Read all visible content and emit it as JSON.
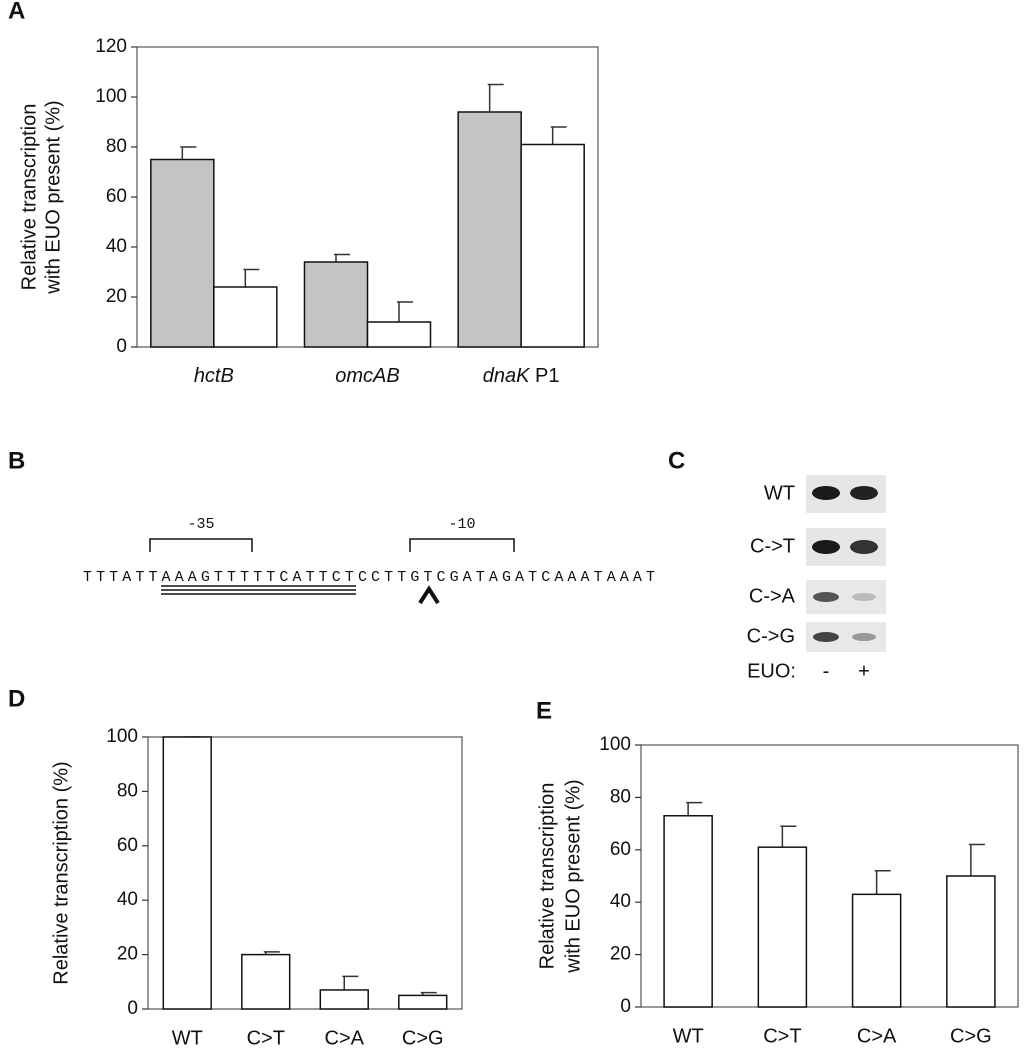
{
  "chart_data": [
    {
      "type": "bar",
      "label": "A",
      "ylabel": [
        "Relative transcription",
        "with EUO present (%)"
      ],
      "categories": [
        "hctB",
        "omcAB",
        "dnaK P1"
      ],
      "series": [
        {
          "color": "#c4c4c4",
          "values": [
            75,
            34,
            94
          ],
          "errors": [
            5,
            3,
            11
          ]
        },
        {
          "color": "#ffffff",
          "values": [
            24,
            10,
            81
          ],
          "errors": [
            7,
            8,
            7
          ]
        }
      ],
      "ylim": [
        0,
        120
      ],
      "yticks": [
        0,
        20,
        40,
        60,
        80,
        100,
        120
      ]
    },
    {
      "type": "bar",
      "label": "D",
      "ylabel": [
        "Relative transcription (%)"
      ],
      "categories": [
        "WT",
        "C>T",
        "C>A",
        "C>G"
      ],
      "series": [
        {
          "color": "#ffffff",
          "values": [
            100,
            20,
            7,
            5
          ],
          "errors": [
            0,
            1,
            5,
            1
          ]
        }
      ],
      "ylim": [
        0,
        100
      ],
      "yticks": [
        0,
        20,
        40,
        60,
        80,
        100
      ]
    },
    {
      "type": "bar",
      "label": "E",
      "ylabel": [
        "Relative transcription",
        "with EUO present (%)"
      ],
      "categories": [
        "WT",
        "C>T",
        "C>A",
        "C>G"
      ],
      "series": [
        {
          "color": "#ffffff",
          "values": [
            73,
            61,
            43,
            50
          ],
          "errors": [
            5,
            8,
            9,
            12
          ]
        }
      ],
      "ylim": [
        0,
        100
      ],
      "yticks": [
        0,
        20,
        40,
        60,
        80,
        100
      ]
    }
  ],
  "sequence": {
    "label": "B",
    "text": "TTTATTAAAGTTTTTCATTCTCCTTGTCGATAGATCAAATAAAT",
    "box35": "-35",
    "box10": "-10"
  },
  "gel": {
    "label": "C",
    "rows": [
      "WT",
      "C->T",
      "C->A",
      "C->G"
    ],
    "lane_label": "EUO:",
    "lanes": [
      "-",
      "+"
    ]
  }
}
